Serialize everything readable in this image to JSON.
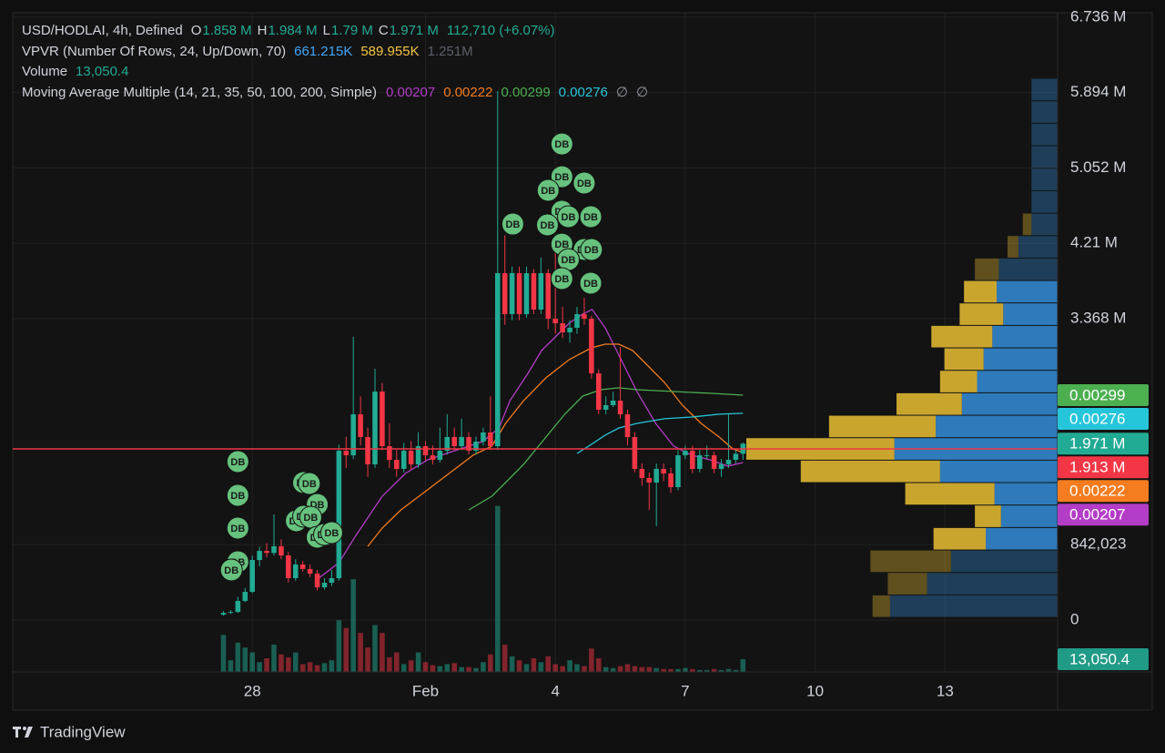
{
  "chart_data": {
    "type": "candlestick",
    "legend": {
      "symbol": "USD/HODLAI, 4h, Defined",
      "ohlc": [
        {
          "key": "O",
          "label": "1.858 M"
        },
        {
          "key": "H",
          "label": "1.984 M"
        },
        {
          "key": "L",
          "label": "1.79 M"
        },
        {
          "key": "C",
          "label": "1.971 M"
        }
      ],
      "change": "112,710 (+6.07%)"
    },
    "open": [
      60000,
      81000,
      90000,
      214000,
      315000,
      671000,
      773000,
      750000,
      824000,
      722000,
      468000,
      621000,
      570000,
      519000,
      366000,
      417000,
      468000,
      1892000,
      1841000,
      2299000,
      2045000,
      1740000,
      2553000,
      1943000,
      1790000,
      1689000,
      1892000,
      1740000,
      1943000,
      1841000,
      1790000,
      1892000,
      2045000,
      1943000,
      2045000,
      1892000,
      1994000,
      2096000,
      1943000,
      3876000,
      3418000,
      3876000,
      3418000,
      3876000,
      3469000,
      3876000,
      3367000,
      3316000,
      3215000,
      3266000,
      3418000,
      3367000,
      2757000,
      2350000,
      2401000,
      2452000,
      2299000,
      2045000,
      1689000,
      1587000,
      1536000,
      1689000,
      1638000,
      1485000,
      1841000,
      1892000,
      1689000,
      1841000,
      1841000,
      1689000,
      1740000,
      1790000,
      1858000
    ],
    "high": [
      100000,
      110000,
      260000,
      360000,
      720000,
      820000,
      860000,
      1180000,
      900000,
      760000,
      680000,
      660000,
      620000,
      560000,
      470000,
      560000,
      1960000,
      2050000,
      3164000,
      2500000,
      2150000,
      2808000,
      2650000,
      2200000,
      1900000,
      1980000,
      2000000,
      2100000,
      2000000,
      1950000,
      2150000,
      2300000,
      2150000,
      2250000,
      2100000,
      2050000,
      2150000,
      2500000,
      5910000,
      4300000,
      3950000,
      3950000,
      3950000,
      3920000,
      4050000,
      3920000,
      4200000,
      3500000,
      3350000,
      3500000,
      3600000,
      3400000,
      2800000,
      2500000,
      2550000,
      3050000,
      2350000,
      2100000,
      1750000,
      1650000,
      1750000,
      1750000,
      1700000,
      1900000,
      1950000,
      1950000,
      1900000,
      1950000,
      1880000,
      1800000,
      2300000,
      1900000,
      1984000
    ],
    "low": [
      50000,
      70000,
      80000,
      200000,
      300000,
      600000,
      700000,
      720000,
      680000,
      420000,
      440000,
      540000,
      480000,
      330000,
      340000,
      380000,
      440000,
      1700000,
      1800000,
      1950000,
      1600000,
      1700000,
      1900000,
      1700000,
      1600000,
      1650000,
      1680000,
      1700000,
      1780000,
      1740000,
      1760000,
      1850000,
      1900000,
      1900000,
      1850000,
      1850000,
      1950000,
      1900000,
      1900000,
      3300000,
      3350000,
      3350000,
      3380000,
      3420000,
      3420000,
      3250000,
      3200000,
      3150000,
      3100000,
      3200000,
      3300000,
      2700000,
      2300000,
      2300000,
      2380000,
      2250000,
      1950000,
      1650000,
      1500000,
      1230000,
      1048000,
      1550000,
      1420000,
      1450000,
      1800000,
      1640000,
      1650000,
      1800000,
      1640000,
      1600000,
      1700000,
      1750000,
      1790000
    ],
    "close": [
      81000,
      90000,
      214000,
      315000,
      671000,
      773000,
      750000,
      824000,
      722000,
      468000,
      621000,
      570000,
      519000,
      366000,
      417000,
      468000,
      1892000,
      1841000,
      2299000,
      2045000,
      1740000,
      2553000,
      1943000,
      1790000,
      1689000,
      1892000,
      1740000,
      1943000,
      1841000,
      1790000,
      1892000,
      2045000,
      1943000,
      2045000,
      1892000,
      1994000,
      2096000,
      1943000,
      3876000,
      3418000,
      3876000,
      3418000,
      3876000,
      3469000,
      3876000,
      3367000,
      3316000,
      3215000,
      3266000,
      3418000,
      3367000,
      2757000,
      2350000,
      2401000,
      2452000,
      2299000,
      2045000,
      1689000,
      1587000,
      1536000,
      1689000,
      1638000,
      1485000,
      1841000,
      1892000,
      1689000,
      1841000,
      1841000,
      1689000,
      1740000,
      1790000,
      1858000,
      1971000
    ],
    "up_color": "#22ab94",
    "down_color": "#f23645",
    "last_label": "1.971 M",
    "xlim": [
      -29.2,
      115.6
    ],
    "xticks": [
      {
        "value": 4,
        "label": "28"
      },
      {
        "value": 28,
        "label": "Feb"
      },
      {
        "value": 46,
        "label": "4"
      },
      {
        "value": 64,
        "label": "7"
      },
      {
        "value": 82,
        "label": "10"
      },
      {
        "value": 100,
        "label": "13"
      }
    ],
    "ylim": [
      -580000,
      6786000
    ],
    "yticks": [
      {
        "value": 6736000,
        "label": "6.736 M"
      },
      {
        "value": 5894000,
        "label": "5.894 M"
      },
      {
        "value": 5052000,
        "label": "5.052 M"
      },
      {
        "value": 4210000,
        "label": "4.21 M"
      },
      {
        "value": 3368000,
        "label": "3.368 M"
      },
      {
        "value": 842023,
        "label": "842,023"
      },
      0
    ],
    "grid": true,
    "price_line": {
      "value": 1913000,
      "label": "1.913 M",
      "color": "#f23645"
    },
    "volume": {
      "name": "Volume",
      "values": [
        38000,
        12000,
        30000,
        25000,
        20000,
        10000,
        14000,
        28000,
        18000,
        15000,
        20000,
        8000,
        10000,
        7000,
        9000,
        12000,
        53000,
        45000,
        95000,
        40000,
        25000,
        48000,
        40000,
        15000,
        20000,
        8000,
        12000,
        20000,
        10000,
        7000,
        6000,
        8000,
        9000,
        5000,
        5000,
        4000,
        10000,
        18000,
        170000,
        28000,
        16000,
        12000,
        8000,
        14000,
        10000,
        16000,
        8000,
        6000,
        12000,
        8000,
        6000,
        24000,
        14000,
        5000,
        4000,
        6000,
        8000,
        6000,
        5000,
        5000,
        4000,
        3000,
        3000,
        3000,
        4000,
        3000,
        2000,
        2000,
        3000,
        2000,
        3000,
        2000,
        13050.4
      ],
      "last_label": "13,050.4",
      "y2lim": [
        0,
        675000
      ]
    },
    "vpvr": {
      "title": "VPVR (Number Of Rows, 24, Up/Down, 70)",
      "up_total": "661.215K",
      "down_total": "589.955K",
      "total": "1.251M",
      "price_range": [
        30000,
        6053000
      ],
      "up": [
        77000,
        60000,
        49000,
        33000,
        26000,
        29000,
        54000,
        75000,
        56000,
        44000,
        37000,
        34000,
        30000,
        25000,
        28000,
        27000,
        18000,
        12000,
        12000,
        12000,
        12000,
        12000,
        12000,
        12000
      ],
      "down": [
        8000,
        18000,
        37000,
        24000,
        12000,
        41000,
        64000,
        68000,
        49000,
        30000,
        17000,
        18000,
        28000,
        20000,
        15000,
        11000,
        5000,
        4000,
        0,
        0,
        0,
        0,
        0,
        0
      ],
      "up_color": "#2f7fc4",
      "down_color": "#d4ad2f",
      "total_color": "#5d606b",
      "value_area": [
        3,
        14
      ]
    },
    "moving_averages": {
      "title": "Moving Average Multiple (14, 21, 35, 50, 100, 200, Simple)",
      "series": [
        {
          "color": "#b33dc6",
          "legend_value": "0.00207",
          "x": [
            13.2,
            16.0,
            18.2,
            22.0,
            25.2,
            28.3,
            32.1,
            35.9,
            38.2,
            39.7,
            42.2,
            44.1,
            46.0,
            47.9,
            49.8,
            51.1,
            52.9,
            54.8,
            57.3,
            59.9,
            62.4,
            64.9,
            67.4,
            69.9,
            72.0
          ],
          "values": [
            468000,
            641000,
            926000,
            1384000,
            1638000,
            1791000,
            1893000,
            1994000,
            2147000,
            2452000,
            2757000,
            3012000,
            3164000,
            3317000,
            3419000,
            3470000,
            3266000,
            2961000,
            2554000,
            2198000,
            1943000,
            1842000,
            1791000,
            1720000,
            1760000
          ]
        },
        {
          "color": "#f57c1f",
          "legend_value": "0.00222",
          "x": [
            20.0,
            22.0,
            24.6,
            27.1,
            29.6,
            32.1,
            34.6,
            37.2,
            39.1,
            41.6,
            44.7,
            47.9,
            51.0,
            52.9,
            54.8,
            56.7,
            58.6,
            61.1,
            63.6,
            66.2,
            68.7,
            70.6,
            72.0
          ],
          "values": [
            824000,
            1028000,
            1231000,
            1384000,
            1536000,
            1689000,
            1842000,
            1943000,
            2198000,
            2452000,
            2707000,
            2910000,
            3042000,
            3083000,
            3083000,
            3012000,
            2859000,
            2656000,
            2401000,
            2198000,
            2045000,
            1913000,
            1872000
          ]
        },
        {
          "color": "#4caf50",
          "legend_value": "0.00299",
          "x": [
            34.0,
            37.2,
            39.1,
            41.6,
            44.7,
            47.3,
            49.8,
            52.3,
            54.8,
            57.3,
            62.4,
            67.4,
            72.0
          ],
          "values": [
            1231000,
            1384000,
            1536000,
            1740000,
            2045000,
            2300000,
            2503000,
            2574000,
            2595000,
            2574000,
            2554000,
            2534000,
            2513000
          ]
        },
        {
          "color": "#26c6da",
          "legend_value": "0.00276",
          "x": [
            49.0,
            51.0,
            52.9,
            54.8,
            57.3,
            61.1,
            64.9,
            68.7,
            72.0
          ],
          "values": [
            1862000,
            1964000,
            2066000,
            2147000,
            2198000,
            2249000,
            2269000,
            2300000,
            2310000
          ]
        }
      ],
      "empty": [
        "∅",
        "∅"
      ],
      "empty_color": "#9598a1"
    },
    "markers": {
      "label": "DB",
      "color": "#66c27d",
      "x": [
        2.0,
        2.0,
        2.0,
        2.0,
        1.1,
        11.1,
        11.9,
        13.0,
        10.1,
        11.1,
        12.1,
        13.0,
        14.0,
        15.0,
        46.9,
        46.9,
        45.0,
        50.0,
        40.1,
        46.9,
        44.9,
        47.8,
        50.9,
        46.9,
        50.0,
        51.0,
        47.8,
        46.9,
        50.9
      ],
      "y": [
        1770000,
        1394000,
        1027000,
        651000,
        560000,
        1536000,
        1526000,
        1292000,
        1109000,
        1160000,
        1150000,
        926000,
        956000,
        977000,
        5320000,
        4954000,
        4802000,
        4883000,
        4425000,
        4568000,
        4415000,
        4507000,
        4507000,
        4201000,
        4141000,
        4141000,
        4028000,
        3815000,
        3764000
      ]
    },
    "brand": "TradingView"
  }
}
